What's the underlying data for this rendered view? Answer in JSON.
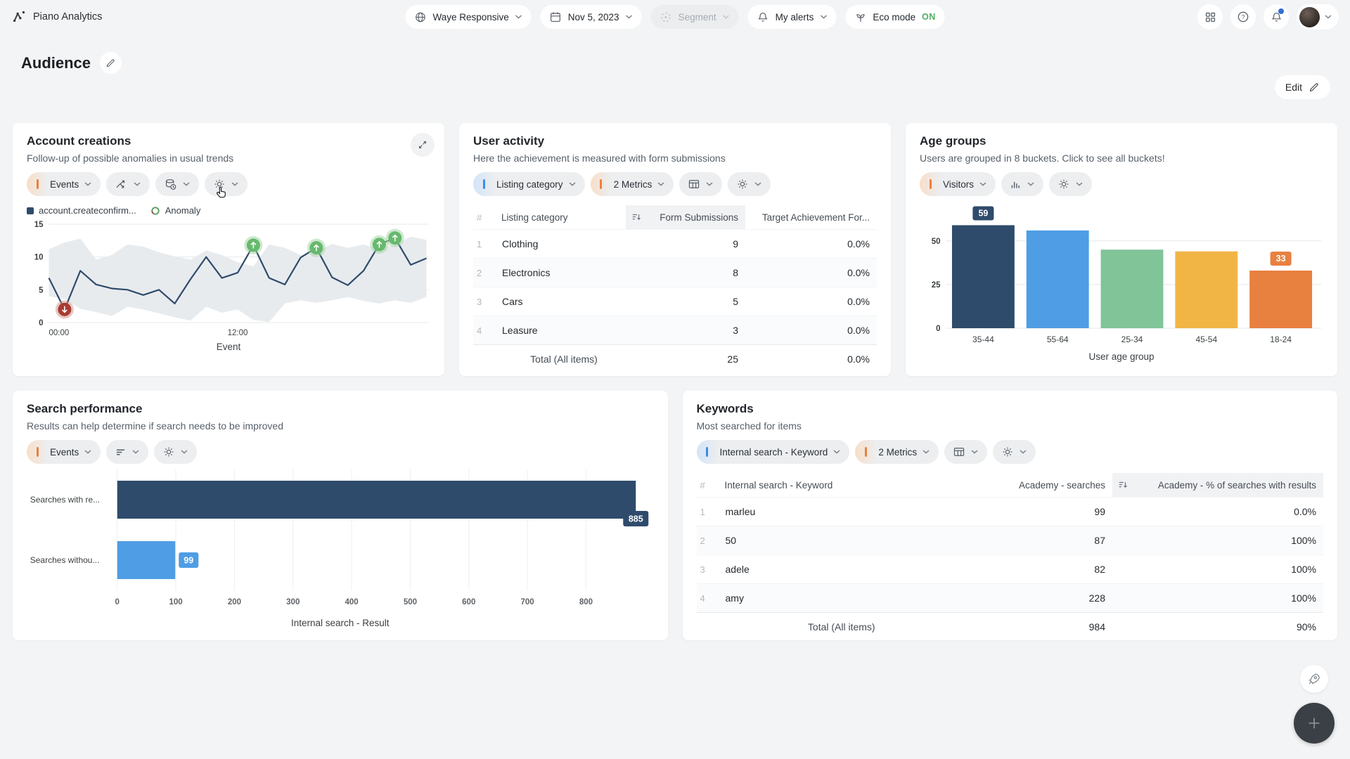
{
  "colors": {
    "navy": "#2f4b6b",
    "blue": "#4f9de4",
    "green": "#80c498",
    "amber": "#f1b545",
    "orange": "#e8803f",
    "red": "#a93b33",
    "red_halo": "#cf9288",
    "green_marker": "#67b96d",
    "green_halo": "#9ed3a0",
    "band": "#e8ebee",
    "grid": "#e6e8ea",
    "accent_blue": "#3d8ee0",
    "accent_orange": "#e8823e",
    "eco_on": "#4faf63",
    "notification_dot": "#2f6fd8"
  },
  "topbar": {
    "brand": "Piano Analytics",
    "site": "Waye Responsive",
    "date": "Nov 5, 2023",
    "segment": "Segment",
    "alerts": "My alerts",
    "eco_label": "Eco mode",
    "eco_state": "ON"
  },
  "page": {
    "title": "Audience",
    "edit": "Edit"
  },
  "account": {
    "title": "Account creations",
    "subtitle": "Follow-up of possible anomalies in usual trends",
    "pill": "Events",
    "legend_series": "account.createconfirm...",
    "legend_anomaly": "Anomaly"
  },
  "activity": {
    "title": "User activity",
    "subtitle": "Here the achievement is measured with form submissions",
    "pill_dim": "Listing category",
    "pill_metrics": "2 Metrics",
    "headers": {
      "num": "#",
      "dim": "Listing category",
      "m1": "Form Submissions",
      "m2": "Target Achievement For..."
    },
    "rows": [
      [
        "1",
        "Clothing",
        "9",
        "0.0%"
      ],
      [
        "2",
        "Electronics",
        "8",
        "0.0%"
      ],
      [
        "3",
        "Cars",
        "5",
        "0.0%"
      ],
      [
        "4",
        "Leasure",
        "3",
        "0.0%"
      ]
    ],
    "total": {
      "label": "Total (All items)",
      "m1": "25",
      "m2": "0.0%"
    }
  },
  "age": {
    "title": "Age groups",
    "subtitle": "Users are grouped in 8 buckets. Click to see all buckets!",
    "pill": "Visitors"
  },
  "search": {
    "title": "Search performance",
    "subtitle": "Results can help determine if search needs to be improved",
    "pill": "Events"
  },
  "keywords": {
    "title": "Keywords",
    "subtitle": "Most searched for items",
    "pill_dim": "Internal search - Keyword",
    "pill_metrics": "2 Metrics",
    "headers": {
      "num": "#",
      "dim": "Internal search - Keyword",
      "m1": "Academy - searches",
      "m2": "Academy - % of searches with results"
    },
    "rows": [
      [
        "1",
        "marleu",
        "99",
        "0.0%"
      ],
      [
        "2",
        "50",
        "87",
        "100%"
      ],
      [
        "3",
        "adele",
        "82",
        "100%"
      ],
      [
        "4",
        "amy",
        "228",
        "100%"
      ]
    ],
    "total": {
      "label": "Total (All items)",
      "m1": "984",
      "m2": "90%"
    }
  },
  "chart_data": [
    {
      "id": "account-creations",
      "type": "line",
      "title": "Account creations",
      "series": [
        {
          "name": "account.createconfirm...",
          "values": [
            6.8,
            2,
            7.9,
            5.8,
            5.2,
            5,
            4.2,
            5,
            2.9,
            6.6,
            10,
            6.8,
            7.6,
            11.8,
            6.8,
            5.8,
            9.9,
            11.4,
            6.9,
            5.7,
            7.9,
            11.9,
            12.9,
            8.8,
            9.8
          ]
        }
      ],
      "band_upper": [
        11.2,
        12.2,
        12.8,
        9.6,
        10.3,
        11.9,
        11.6,
        10.7,
        10.1,
        9.6,
        11.0,
        10.3,
        9.2,
        8.6,
        11.9,
        11.4,
        10.3,
        10.8,
        12.0,
        11.4,
        11.9,
        11.2,
        11.9,
        13.1,
        12.6
      ],
      "band_lower": [
        4.0,
        3.6,
        2.1,
        1.6,
        1.0,
        2.4,
        2.0,
        1.4,
        0.8,
        0.3,
        2.4,
        1.5,
        2.0,
        0.4,
        0.1,
        2.9,
        3.4,
        3.0,
        3.4,
        3.9,
        3.3,
        2.9,
        3.4,
        3.0,
        3.9
      ],
      "anomalies": [
        {
          "index": 1,
          "dir": "down"
        },
        {
          "index": 13,
          "dir": "up"
        },
        {
          "index": 17,
          "dir": "up"
        },
        {
          "index": 21,
          "dir": "up"
        },
        {
          "index": 22,
          "dir": "up"
        }
      ],
      "x_ticks": [
        {
          "index": 0,
          "label": "00:00"
        },
        {
          "index": 12,
          "label": "12:00"
        }
      ],
      "xlabel": "Event",
      "ylim": [
        0,
        15
      ],
      "yticks": [
        0,
        5,
        10,
        15
      ]
    },
    {
      "id": "age-groups",
      "type": "bar",
      "title": "Age groups",
      "categories": [
        "35-44",
        "55-64",
        "25-34",
        "45-54",
        "18-24"
      ],
      "values": [
        59,
        56,
        45,
        44,
        33
      ],
      "bar_colors": [
        "navy",
        "blue",
        "green",
        "amber",
        "orange"
      ],
      "value_labels": [
        {
          "index": 0,
          "value": "59"
        },
        {
          "index": 4,
          "value": "33"
        }
      ],
      "xlabel": "User age group",
      "ylim": [
        0,
        62
      ],
      "yticks": [
        0,
        25,
        50
      ]
    },
    {
      "id": "search-performance",
      "type": "horizontal-bar",
      "title": "Search performance",
      "categories": [
        "Searches with re...",
        "Searches withou..."
      ],
      "values": [
        885,
        99
      ],
      "value_labels": [
        "885",
        "99"
      ],
      "bar_colors": [
        "navy",
        "blue"
      ],
      "xlabel": "Internal search - Result",
      "xlim": [
        0,
        900
      ],
      "xticks": [
        0,
        100,
        200,
        300,
        400,
        500,
        600,
        700,
        800
      ]
    }
  ]
}
